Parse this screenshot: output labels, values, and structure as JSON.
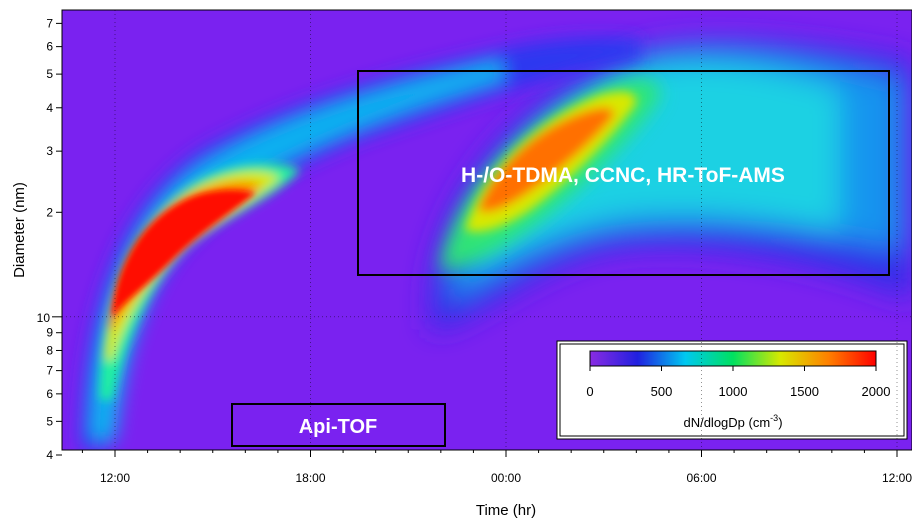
{
  "chart_data": {
    "type": "heatmap",
    "xlabel": "Time (hr)",
    "ylabel": "Diameter (nm)",
    "x_tick_labels": [
      "12:00",
      "18:00",
      "00:00",
      "06:00",
      "12:00"
    ],
    "y_scale": "log",
    "y_major_ticks": [
      {
        "value": 10,
        "label": "10"
      }
    ],
    "y_minor_ticks": [
      {
        "value": 4,
        "label": "4"
      },
      {
        "value": 5,
        "label": "5"
      },
      {
        "value": 6,
        "label": "6"
      },
      {
        "value": 7,
        "label": "7"
      },
      {
        "value": 8,
        "label": "8"
      },
      {
        "value": 9,
        "label": "9"
      },
      {
        "value": 20,
        "label": "2"
      },
      {
        "value": 30,
        "label": "3"
      },
      {
        "value": 40,
        "label": "4"
      },
      {
        "value": 50,
        "label": "5"
      },
      {
        "value": 60,
        "label": "6"
      },
      {
        "value": 70,
        "label": "7"
      }
    ],
    "colorbar": {
      "label_main": "dN/dlogDp (cm",
      "label_exp": "-3",
      "label_end": ")",
      "ticks": [
        "0",
        "500",
        "1000",
        "1500",
        "2000"
      ],
      "range": [
        0,
        2000
      ],
      "colormap": [
        "#8a2be2",
        "#2020e0",
        "#00c8f0",
        "#00e060",
        "#d8e800",
        "#ff8000",
        "#ff0000"
      ]
    },
    "background_color": "#7a22f0",
    "annotations": [
      {
        "text": "H-/O-TDMA, CCNC, HR-ToF-AMS"
      },
      {
        "text": "Api-TOF"
      }
    ]
  }
}
